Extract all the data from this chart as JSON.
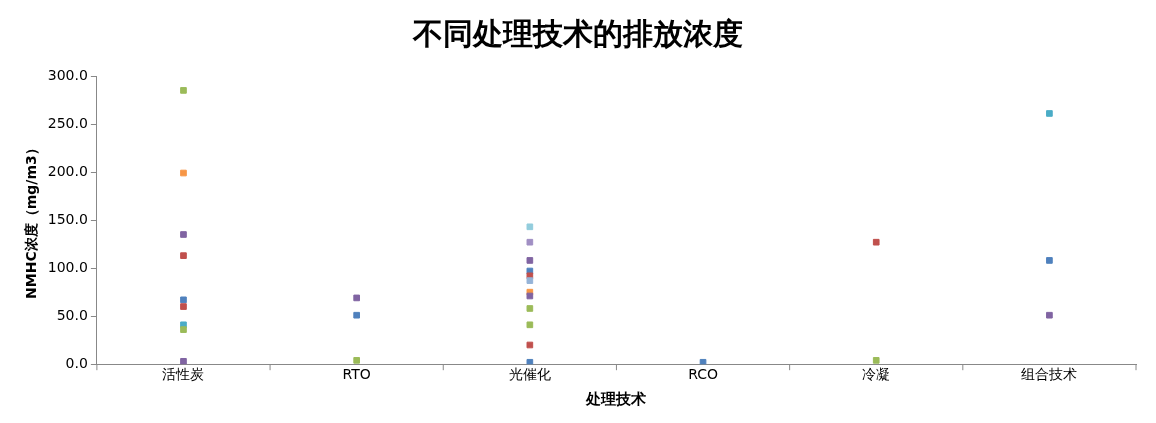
{
  "chart_data": {
    "type": "scatter",
    "title": "不同处理技术的排放浓度",
    "xlabel": "处理技术",
    "ylabel": "NMHC浓度（mg/m3）",
    "categories": [
      "活性炭",
      "RTO",
      "光催化",
      "RCO",
      "冷凝",
      "组合技术"
    ],
    "ylim": [
      0,
      300
    ],
    "yticks": [
      {
        "value": 0,
        "label": "0.0"
      },
      {
        "value": 50,
        "label": "50.0"
      },
      {
        "value": 100,
        "label": "100.0"
      },
      {
        "value": 150,
        "label": "150.0"
      },
      {
        "value": 200,
        "label": "200.0"
      },
      {
        "value": 250,
        "label": "250.0"
      },
      {
        "value": 300,
        "label": "300.0"
      }
    ],
    "grid": false,
    "legend": false,
    "marker": "square",
    "series": [
      {
        "x": [
          "活性炭",
          "活性炭",
          "活性炭",
          "活性炭",
          "活性炭",
          "活性炭",
          "活性炭",
          "活性炭",
          "活性炭",
          "RTO",
          "RTO",
          "RTO",
          "光催化",
          "光催化",
          "光催化",
          "光催化",
          "光催化",
          "光催化",
          "光催化",
          "光催化",
          "光催化",
          "光催化",
          "光催化",
          "光催化",
          "RCO",
          "冷凝",
          "冷凝",
          "组合技术",
          "组合技术",
          "组合技术"
        ],
        "values": [
          285,
          199,
          135,
          113,
          67,
          60,
          41,
          36,
          3,
          69,
          51,
          4,
          143,
          127,
          108,
          97,
          92,
          87,
          75,
          71,
          58,
          41,
          20,
          2,
          2,
          127,
          4,
          261,
          108,
          51
        ],
        "colors": [
          "#9bbb59",
          "#f79646",
          "#8064a2",
          "#c0504d",
          "#4f81bd",
          "#c0504d",
          "#4bacc6",
          "#9bbb59",
          "#8064a2",
          "#8064a2",
          "#4f81bd",
          "#9bbb59",
          "#93cddd",
          "#a18fc4",
          "#8064a2",
          "#4f81bd",
          "#c0504d",
          "#95b3d7",
          "#f79646",
          "#8064a2",
          "#9bbb59",
          "#9bbb59",
          "#c0504d",
          "#4f81bd",
          "#4f81bd",
          "#c0504d",
          "#9bbb59",
          "#4bacc6",
          "#4f81bd",
          "#8064a2"
        ]
      }
    ]
  }
}
